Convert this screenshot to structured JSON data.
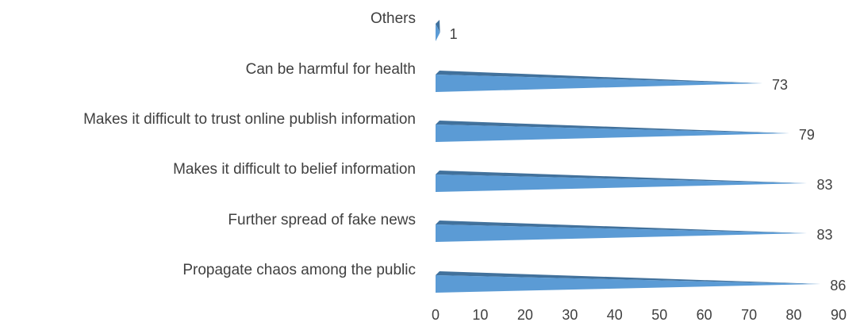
{
  "chart_data": {
    "type": "bar",
    "orientation": "horizontal",
    "categories": [
      "Others",
      "Can be harmful for health",
      "Makes it difficult to trust online publish information",
      "Makes it difficult to belief information",
      "Further spread of fake news",
      "Propagate chaos among the public"
    ],
    "values": [
      1,
      73,
      79,
      83,
      83,
      86
    ],
    "tick_labels": [
      "0",
      "10",
      "20",
      "30",
      "40",
      "50",
      "60",
      "70",
      "80",
      "90"
    ],
    "xlim": [
      0,
      90
    ],
    "grid": false,
    "legend": "none",
    "colors": {
      "bar_front": "#5b9bd5",
      "bar_top": "#41719c",
      "text": "#404040"
    }
  }
}
